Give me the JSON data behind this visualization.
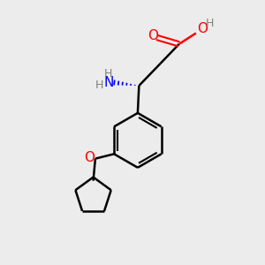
{
  "background_color": "#ececec",
  "atom_colors": {
    "O": "#ff0000",
    "N": "#0000ff",
    "C": "#000000",
    "H": "#808080"
  },
  "bond_color": "#000000",
  "figsize": [
    3.0,
    3.0
  ],
  "dpi": 100
}
